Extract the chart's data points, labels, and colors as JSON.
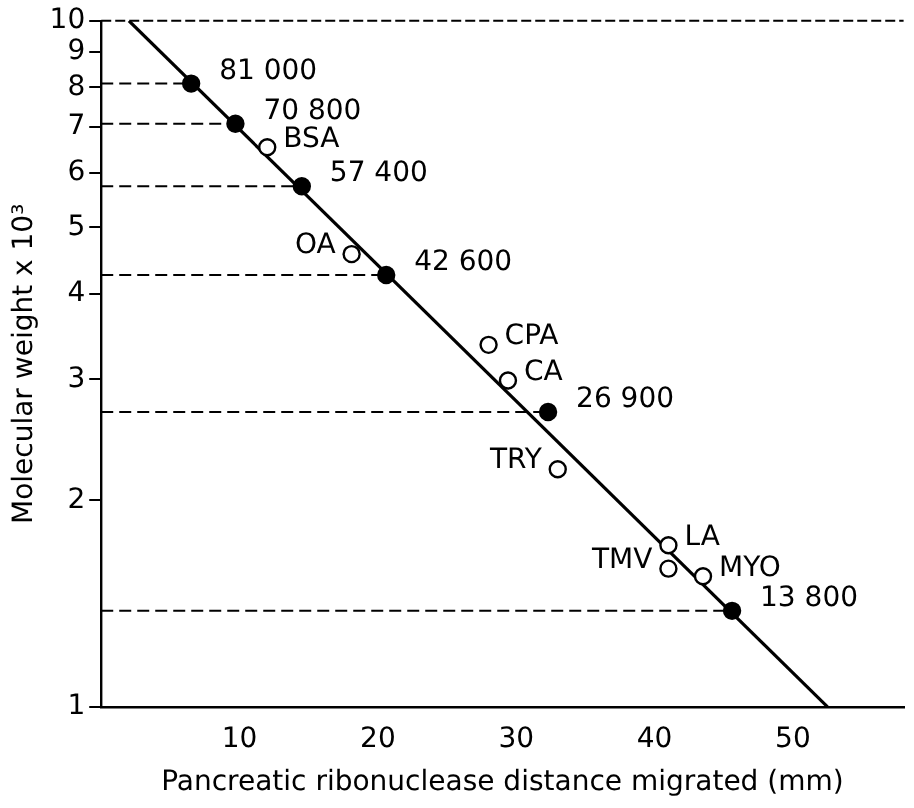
{
  "chart_data": {
    "type": "scatter",
    "xlabel": "Pancreatic ribonuclease distance migrated (mm)",
    "ylabel": "Molecular weight x 10³",
    "log": "y",
    "grid": false,
    "legend": false,
    "marker": "circle",
    "xlim": [
      0,
      58
    ],
    "xticks": [
      10,
      20,
      30,
      40,
      50
    ],
    "ylim": [
      1,
      10
    ],
    "yticks": [
      1,
      2,
      3,
      4,
      5,
      6,
      7,
      8,
      9,
      10
    ],
    "series": [
      {
        "color": "#000000",
        "x": [
          6.5,
          9.7,
          14.5,
          20.6,
          32.3,
          45.6
        ],
        "values": [
          8.1,
          7.08,
          5.74,
          4.26,
          2.69,
          1.38
        ]
      },
      {
        "color": "#000000",
        "x": [
          12.0,
          18.1,
          28.0,
          29.4,
          33.0,
          41.0,
          41.0,
          43.5
        ],
        "values": [
          6.54,
          4.57,
          3.37,
          2.99,
          2.22,
          1.72,
          1.59,
          1.55
        ],
        "value_labels": [
          "BSA",
          "OA",
          "CPA",
          "CA",
          "TRY",
          "LA",
          "TMV",
          "MYO"
        ]
      },
      {
        "type": "line",
        "marker": "none",
        "color": "#000000",
        "x": [
          2.0,
          52.5
        ],
        "values": [
          10,
          1
        ]
      },
      {
        "type": "line",
        "marker": "none",
        "line_style": "dashed",
        "color": "#000000",
        "x": [
          0,
          6.5
        ],
        "values": [
          8.1,
          8.1
        ]
      },
      {
        "type": "line",
        "marker": "none",
        "line_style": "dashed",
        "color": "#000000",
        "x": [
          0,
          9.7
        ],
        "values": [
          7.08,
          7.08
        ]
      },
      {
        "type": "line",
        "marker": "none",
        "line_style": "dashed",
        "color": "#000000",
        "x": [
          0,
          14.5
        ],
        "values": [
          5.74,
          5.74
        ]
      },
      {
        "type": "line",
        "marker": "none",
        "line_style": "dashed",
        "color": "#000000",
        "x": [
          0,
          20.6
        ],
        "values": [
          4.26,
          4.26
        ]
      },
      {
        "type": "line",
        "marker": "none",
        "line_style": "dashed",
        "color": "#000000",
        "x": [
          0,
          32.3
        ],
        "values": [
          2.69,
          2.69
        ]
      },
      {
        "type": "line",
        "marker": "none",
        "line_style": "dashed",
        "color": "#000000",
        "x": [
          0,
          45.6
        ],
        "values": [
          1.38,
          1.38
        ]
      }
    ],
    "annotations": [
      {
        "text": "81 000",
        "x": 6.5,
        "y": 8.1
      },
      {
        "text": "70 800",
        "x": 9.7,
        "y": 7.08
      },
      {
        "text": "57 400",
        "x": 14.5,
        "y": 5.74
      },
      {
        "text": "42 600",
        "x": 20.6,
        "y": 4.26
      },
      {
        "text": "26 900",
        "x": 32.3,
        "y": 2.69
      },
      {
        "text": "13 800",
        "x": 45.6,
        "y": 1.38
      }
    ]
  }
}
